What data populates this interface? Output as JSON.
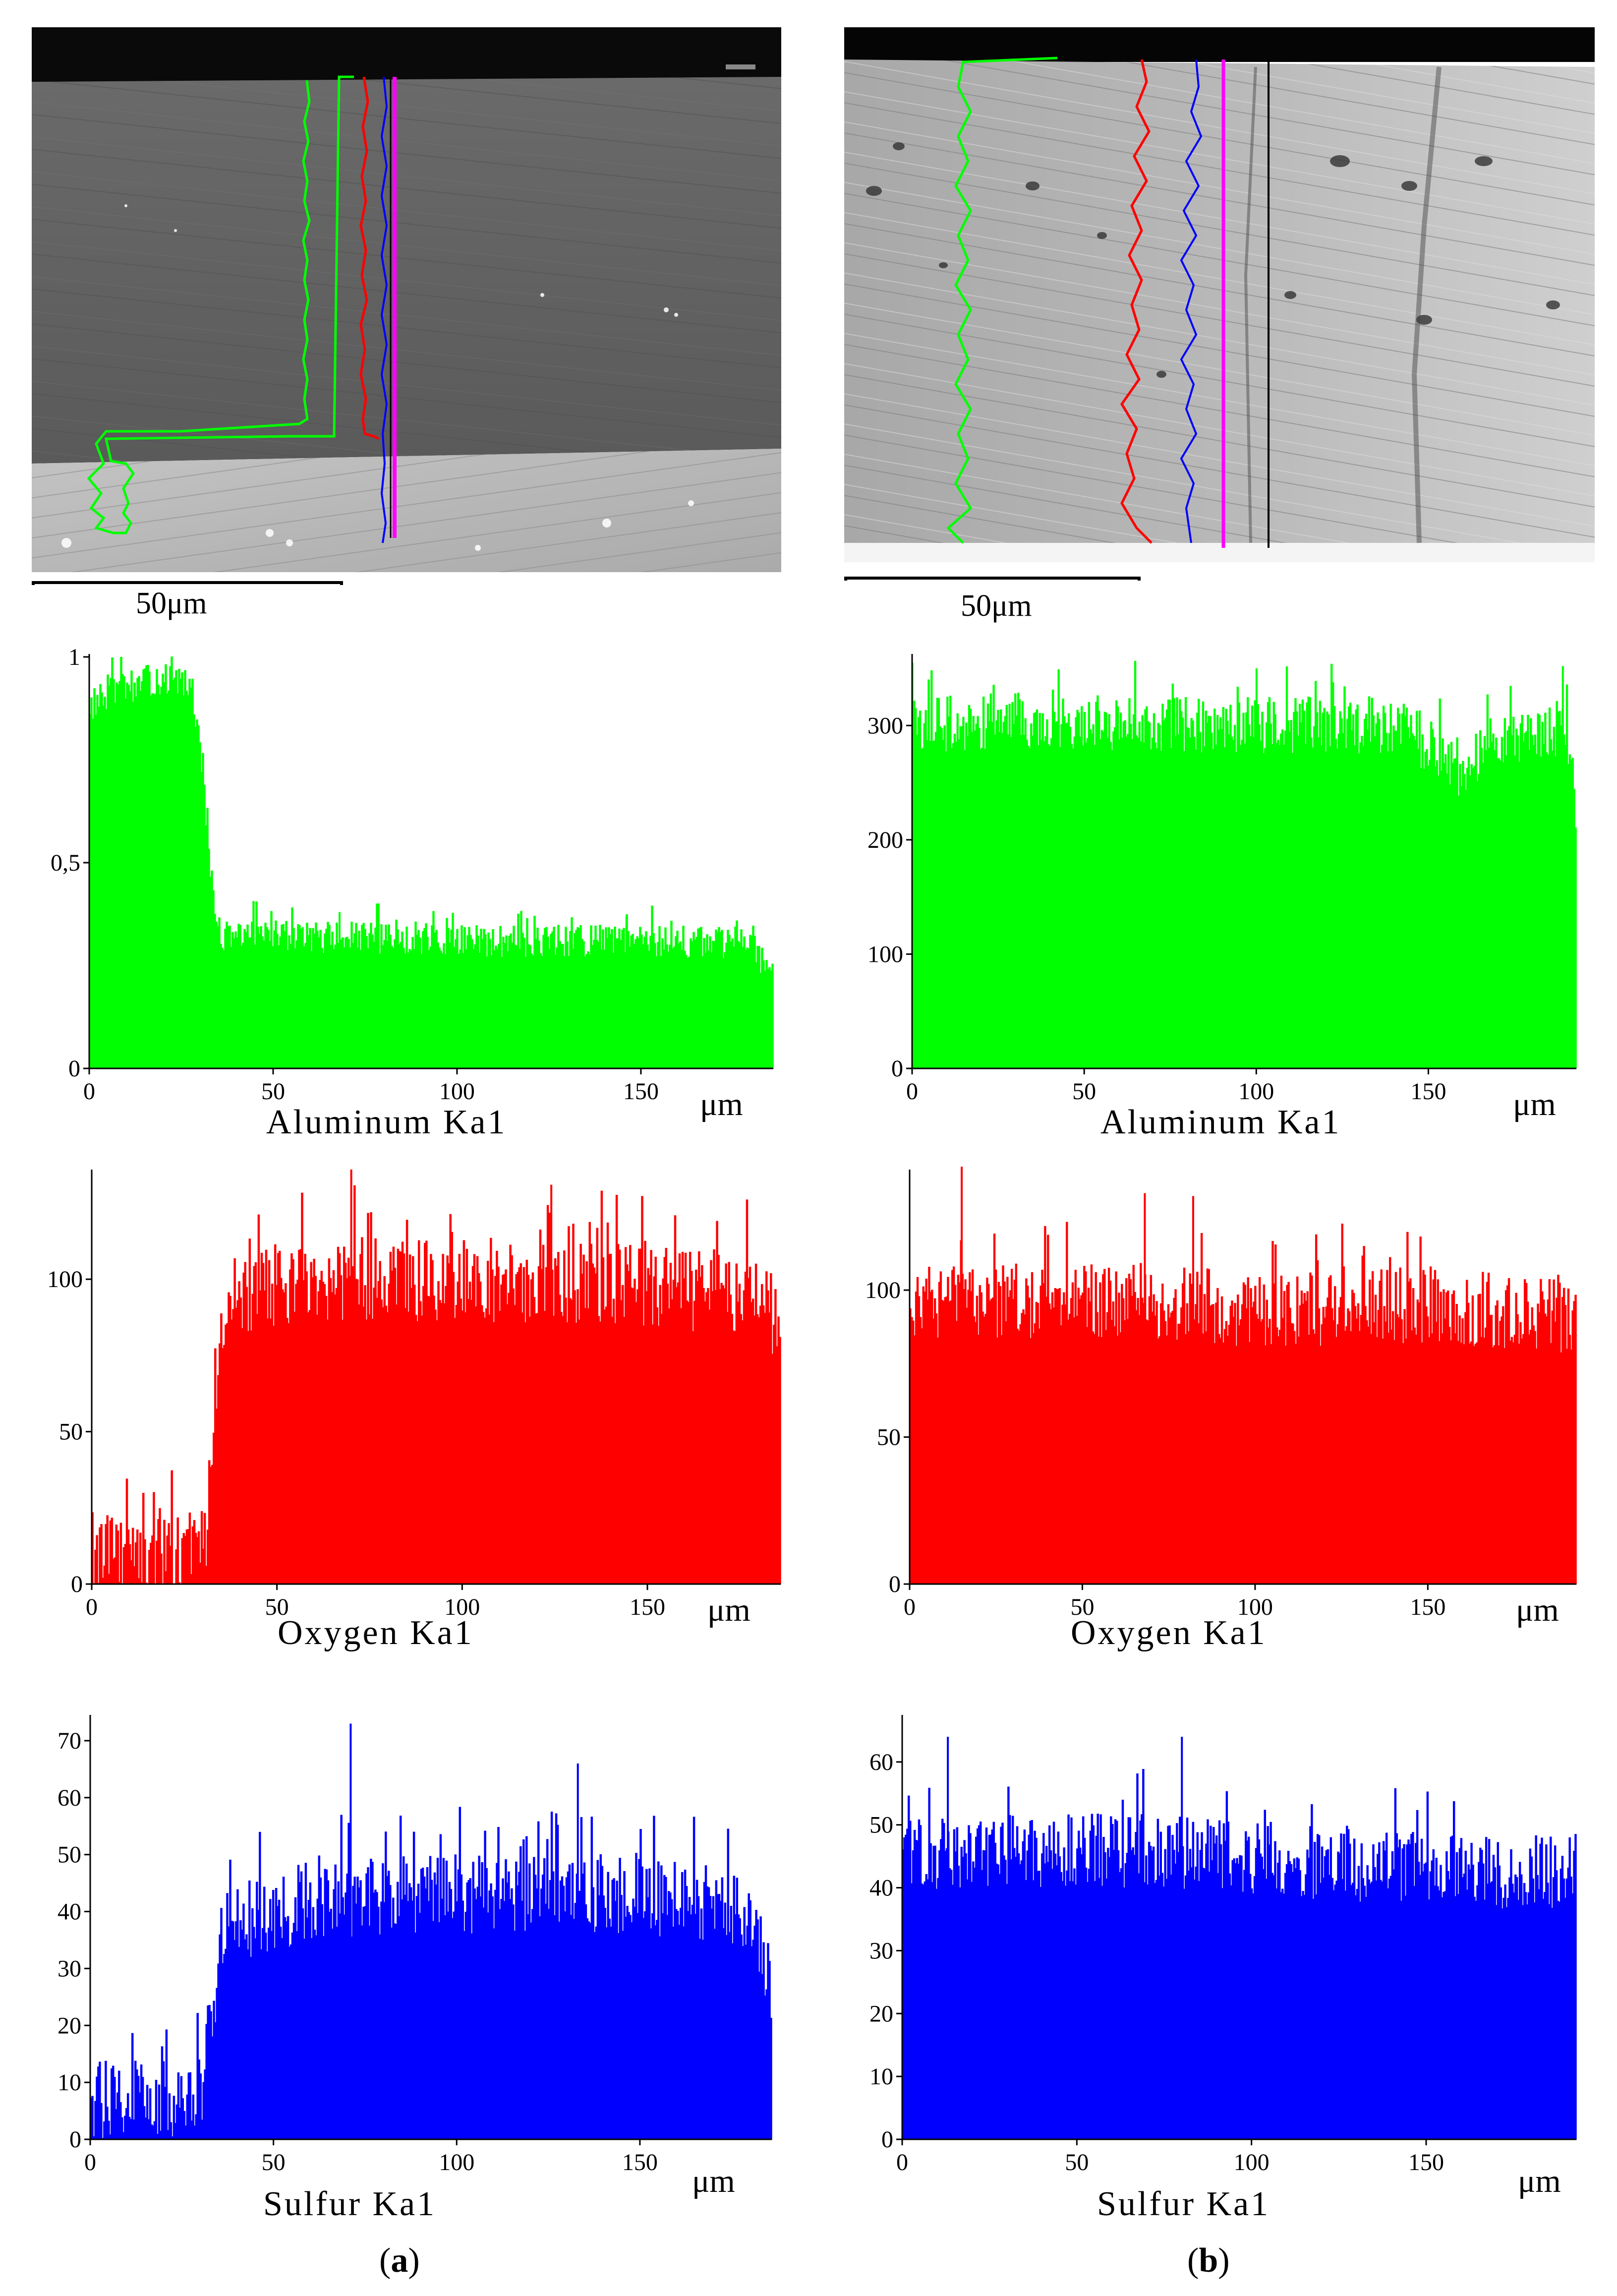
{
  "figure": {
    "caption_a_open": "(",
    "caption_a_letter": "a",
    "caption_a_close": ")",
    "caption_b_open": "(",
    "caption_b_letter": "b",
    "caption_b_close": ")"
  },
  "colors": {
    "aluminum": "#00ff00",
    "oxygen": "#ff0000",
    "sulfur": "#0000ff",
    "trace_pink": "#ff00ff",
    "trace_black": "#000000"
  },
  "images": {
    "a": {
      "scale_label": "50μm",
      "description_icon": "sem-micrograph-a"
    },
    "b": {
      "scale_label": "50μm",
      "description_icon": "sem-micrograph-b"
    }
  },
  "chart_data": [
    {
      "id": "a-aluminum",
      "type": "bar",
      "title": "Aluminum  Ka1",
      "xlabel": "μm",
      "xlim": [
        0,
        186
      ],
      "ylim": [
        0,
        1
      ],
      "xticks": [
        0,
        50,
        100,
        150
      ],
      "yticks": [
        0,
        0.5,
        1
      ],
      "ytick_labels": [
        "0",
        "0,5",
        "1"
      ],
      "color": "#00ff00",
      "profile": [
        [
          0,
          0.88
        ],
        [
          8,
          0.92
        ],
        [
          20,
          0.95
        ],
        [
          28,
          0.92
        ],
        [
          31,
          0.7
        ],
        [
          34,
          0.38
        ],
        [
          36,
          0.32
        ],
        [
          60,
          0.32
        ],
        [
          100,
          0.31
        ],
        [
          150,
          0.31
        ],
        [
          180,
          0.3
        ],
        [
          186,
          0.22
        ]
      ],
      "noise": 0.04,
      "peaks": [
        [
          68,
          0.38
        ],
        [
          146,
          0.37
        ]
      ]
    },
    {
      "id": "b-aluminum",
      "type": "bar",
      "title": "Aluminum  Ka1",
      "xlabel": "μm",
      "xlim": [
        0,
        193
      ],
      "ylim": [
        0,
        360
      ],
      "xticks": [
        0,
        50,
        100,
        150
      ],
      "yticks": [
        0,
        100,
        200,
        300
      ],
      "ytick_labels": [
        "0",
        "100",
        "200",
        "300"
      ],
      "color": "#00ff00",
      "profile": [
        [
          0,
          300
        ],
        [
          40,
          305
        ],
        [
          90,
          300
        ],
        [
          140,
          300
        ],
        [
          158,
          270
        ],
        [
          161,
          245
        ],
        [
          165,
          280
        ],
        [
          190,
          300
        ],
        [
          193,
          220
        ]
      ],
      "noise": 25,
      "peaks": [
        [
          0,
          355
        ],
        [
          100,
          350
        ],
        [
          189,
          352
        ]
      ]
    },
    {
      "id": "a-oxygen",
      "type": "bar",
      "title": "Oxygen  Ka1",
      "xlabel": "μm",
      "xlim": [
        0,
        186
      ],
      "ylim": [
        0,
        135
      ],
      "xticks": [
        0,
        50,
        100,
        150
      ],
      "yticks": [
        0,
        50,
        100
      ],
      "ytick_labels": [
        "0",
        "50",
        "100"
      ],
      "color": "#ff0000",
      "profile": [
        [
          0,
          10
        ],
        [
          30,
          10
        ],
        [
          33,
          40
        ],
        [
          36,
          95
        ],
        [
          60,
          100
        ],
        [
          100,
          100
        ],
        [
          150,
          98
        ],
        [
          182,
          95
        ],
        [
          186,
          80
        ]
      ],
      "noise": 14,
      "peaks": [
        [
          70,
          136
        ],
        [
          124,
          131
        ]
      ]
    },
    {
      "id": "b-oxygen",
      "type": "bar",
      "title": "Oxygen  Ka1",
      "xlabel": "μm",
      "xlim": [
        0,
        193
      ],
      "ylim": [
        0,
        140
      ],
      "xticks": [
        0,
        50,
        100,
        150
      ],
      "yticks": [
        0,
        50,
        100
      ],
      "ytick_labels": [
        "0",
        "50",
        "100"
      ],
      "color": "#ff0000",
      "profile": [
        [
          0,
          95
        ],
        [
          60,
          97
        ],
        [
          100,
          93
        ],
        [
          150,
          95
        ],
        [
          193,
          90
        ]
      ],
      "noise": 13,
      "peaks": [
        [
          15,
          142
        ],
        [
          68,
          133
        ],
        [
          82,
          132
        ]
      ]
    },
    {
      "id": "a-sulfur",
      "type": "bar",
      "title": "Sulfur  Ka1",
      "xlabel": "μm",
      "xlim": [
        0,
        186
      ],
      "ylim": [
        0,
        74
      ],
      "xticks": [
        0,
        50,
        100,
        150
      ],
      "yticks": [
        0,
        10,
        20,
        30,
        40,
        50,
        60,
        70
      ],
      "ytick_labels": [
        "0",
        "10",
        "20",
        "30",
        "40",
        "50",
        "60",
        "70"
      ],
      "color": "#0000ff",
      "profile": [
        [
          0,
          7
        ],
        [
          30,
          7
        ],
        [
          33,
          22
        ],
        [
          36,
          36
        ],
        [
          60,
          42
        ],
        [
          100,
          43
        ],
        [
          150,
          43
        ],
        [
          180,
          40
        ],
        [
          186,
          26
        ]
      ],
      "noise": 7,
      "peaks": [
        [
          71,
          73
        ],
        [
          133,
          66
        ]
      ]
    },
    {
      "id": "b-sulfur",
      "type": "bar",
      "title": "Sulfur  Ka1",
      "xlabel": "μm",
      "xlim": [
        0,
        193
      ],
      "ylim": [
        0,
        67
      ],
      "xticks": [
        0,
        50,
        100,
        150
      ],
      "yticks": [
        0,
        10,
        20,
        30,
        40,
        50,
        60
      ],
      "ytick_labels": [
        "0",
        "10",
        "20",
        "30",
        "40",
        "50",
        "60"
      ],
      "color": "#0000ff",
      "profile": [
        [
          0,
          45
        ],
        [
          60,
          46
        ],
        [
          120,
          44
        ],
        [
          193,
          42
        ]
      ],
      "noise": 6,
      "peaks": [
        [
          80,
          64
        ],
        [
          13,
          64
        ]
      ]
    }
  ]
}
